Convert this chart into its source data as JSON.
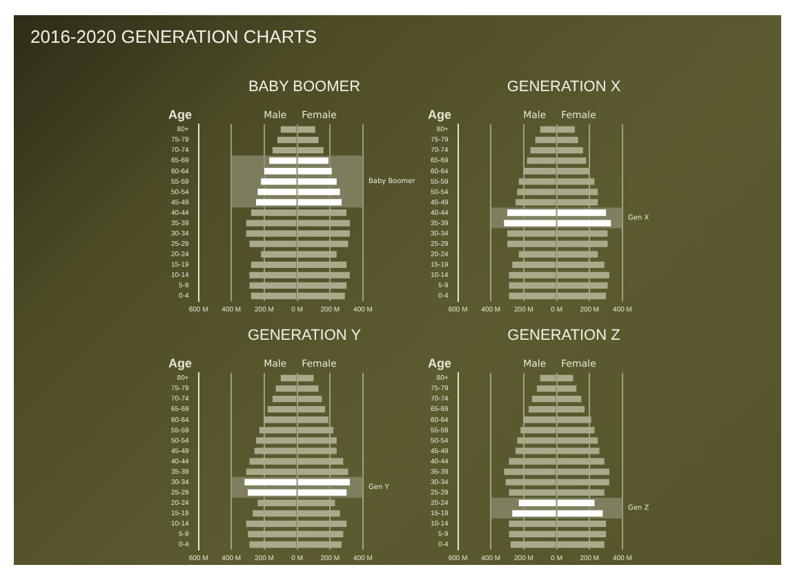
{
  "chart_data": [
    {
      "type": "bar",
      "orientation": "horizontal",
      "stacked": true,
      "grid": "x",
      "title": "BABY BOOMER",
      "ylabel": "Age",
      "annotations": [
        "2016-2020 GENERATION CHARTS"
      ],
      "categories": [
        "80+",
        "75-79",
        "70-74",
        "65-69",
        "60-64",
        "55-59",
        "50-54",
        "45-49",
        "40-44",
        "35-39",
        "30-34",
        "25-29",
        "20-24",
        "15-19",
        "10-14",
        "5-9",
        "0-4"
      ],
      "xlim": [
        -600,
        400
      ],
      "xticks": [
        {
          "value": -600,
          "label": "600 M"
        },
        {
          "value": -400,
          "label": "400 M"
        },
        {
          "value": -200,
          "label": "200 M"
        },
        {
          "value": 0,
          "label": "0 M"
        },
        {
          "value": 200,
          "label": "200 M"
        },
        {
          "value": 400,
          "label": "400 M"
        }
      ],
      "bands": [
        {
          "axis": "y",
          "from": "65-69",
          "to": "45-49",
          "label": "Baby Boomer",
          "color": "#8c8c70"
        }
      ],
      "series": [
        {
          "name": "Male",
          "colors": [
            "#a9a98c",
            "#a9a98c",
            "#a9a98c",
            "#ffffff",
            "#ffffff",
            "#ffffff",
            "#ffffff",
            "#ffffff",
            "#a9a98c",
            "#a9a98c",
            "#a9a98c",
            "#a9a98c",
            "#a9a98c",
            "#a9a98c",
            "#a9a98c",
            "#a9a98c",
            "#a9a98c"
          ],
          "values": [
            -100,
            -120,
            -150,
            -170,
            -200,
            -220,
            -240,
            -250,
            -280,
            -310,
            -310,
            -290,
            -220,
            -280,
            -290,
            -290,
            -280
          ]
        },
        {
          "name": "Female",
          "colors": [
            "#a9a98c",
            "#a9a98c",
            "#a9a98c",
            "#ffffff",
            "#ffffff",
            "#ffffff",
            "#ffffff",
            "#ffffff",
            "#a9a98c",
            "#a9a98c",
            "#a9a98c",
            "#a9a98c",
            "#a9a98c",
            "#a9a98c",
            "#a9a98c",
            "#a9a98c",
            "#a9a98c"
          ],
          "values": [
            110,
            130,
            160,
            190,
            210,
            240,
            260,
            270,
            300,
            320,
            320,
            310,
            240,
            300,
            320,
            300,
            290
          ]
        }
      ]
    },
    {
      "type": "bar",
      "orientation": "horizontal",
      "stacked": true,
      "grid": "x",
      "title": "GENERATION  X",
      "ylabel": "Age",
      "categories": [
        "80+",
        "75-79",
        "70-74",
        "65-69",
        "60-64",
        "55-59",
        "50-54",
        "45-49",
        "40-44",
        "35-39",
        "30-34",
        "25-29",
        "20-24",
        "15-19",
        "10-14",
        "5-9",
        "0-4"
      ],
      "xlim": [
        -600,
        400
      ],
      "xticks": [
        {
          "value": -600,
          "label": "600 M"
        },
        {
          "value": -400,
          "label": "400 M"
        },
        {
          "value": -200,
          "label": "200 M"
        },
        {
          "value": 0,
          "label": "0 M"
        },
        {
          "value": 200,
          "label": "200 M"
        },
        {
          "value": 400,
          "label": "400 M"
        }
      ],
      "bands": [
        {
          "axis": "y",
          "from": "40-44",
          "to": "35-39",
          "label": "Gen X",
          "color": "#8c8c70"
        }
      ],
      "series": [
        {
          "name": "Male",
          "colors": [
            "#a9a98c",
            "#a9a98c",
            "#a9a98c",
            "#a9a98c",
            "#a9a98c",
            "#a9a98c",
            "#a9a98c",
            "#a9a98c",
            "#ffffff",
            "#ffffff",
            "#a9a98c",
            "#a9a98c",
            "#a9a98c",
            "#a9a98c",
            "#a9a98c",
            "#a9a98c",
            "#a9a98c"
          ],
          "values": [
            -100,
            -130,
            -160,
            -180,
            -200,
            -230,
            -240,
            -250,
            -300,
            -320,
            -300,
            -300,
            -230,
            -270,
            -290,
            -290,
            -290
          ]
        },
        {
          "name": "Female",
          "colors": [
            "#a9a98c",
            "#a9a98c",
            "#a9a98c",
            "#a9a98c",
            "#a9a98c",
            "#a9a98c",
            "#a9a98c",
            "#a9a98c",
            "#ffffff",
            "#ffffff",
            "#a9a98c",
            "#a9a98c",
            "#a9a98c",
            "#a9a98c",
            "#a9a98c",
            "#a9a98c",
            "#a9a98c"
          ],
          "values": [
            110,
            130,
            160,
            180,
            200,
            230,
            250,
            250,
            300,
            330,
            310,
            310,
            250,
            290,
            320,
            310,
            300
          ]
        }
      ]
    },
    {
      "type": "bar",
      "orientation": "horizontal",
      "stacked": true,
      "grid": "x",
      "title": "GENERATION  Y",
      "ylabel": "Age",
      "categories": [
        "80+",
        "75-79",
        "70-74",
        "65-69",
        "60-64",
        "55-59",
        "50-54",
        "45-49",
        "40-44",
        "35-39",
        "30-34",
        "25-29",
        "20-24",
        "15-19",
        "10-14",
        "5-9",
        "0-4"
      ],
      "xlim": [
        -600,
        400
      ],
      "xticks": [
        {
          "value": -600,
          "label": "600 M"
        },
        {
          "value": -400,
          "label": "400 M"
        },
        {
          "value": -200,
          "label": "200 M"
        },
        {
          "value": 0,
          "label": "0 M"
        },
        {
          "value": 200,
          "label": "200 M"
        },
        {
          "value": 400,
          "label": "400 M"
        }
      ],
      "bands": [
        {
          "axis": "y",
          "from": "30-34",
          "to": "25-29",
          "label": "Gen Y",
          "color": "#8c8c70"
        }
      ],
      "series": [
        {
          "name": "Male",
          "colors": [
            "#a9a98c",
            "#a9a98c",
            "#a9a98c",
            "#a9a98c",
            "#a9a98c",
            "#a9a98c",
            "#a9a98c",
            "#a9a98c",
            "#a9a98c",
            "#a9a98c",
            "#ffffff",
            "#ffffff",
            "#a9a98c",
            "#a9a98c",
            "#a9a98c",
            "#a9a98c",
            "#a9a98c"
          ],
          "values": [
            -100,
            -130,
            -150,
            -180,
            -200,
            -230,
            -250,
            -260,
            -290,
            -310,
            -320,
            -300,
            -240,
            -270,
            -310,
            -300,
            -290
          ]
        },
        {
          "name": "Female",
          "colors": [
            "#a9a98c",
            "#a9a98c",
            "#a9a98c",
            "#a9a98c",
            "#a9a98c",
            "#a9a98c",
            "#a9a98c",
            "#a9a98c",
            "#a9a98c",
            "#a9a98c",
            "#ffffff",
            "#ffffff",
            "#a9a98c",
            "#a9a98c",
            "#a9a98c",
            "#a9a98c",
            "#a9a98c"
          ],
          "values": [
            100,
            130,
            150,
            170,
            190,
            220,
            240,
            240,
            280,
            310,
            320,
            300,
            230,
            260,
            300,
            280,
            270
          ]
        }
      ]
    },
    {
      "type": "bar",
      "orientation": "horizontal",
      "stacked": true,
      "grid": "x",
      "title": "GENERATION  Z",
      "ylabel": "Age",
      "categories": [
        "80+",
        "75-79",
        "70-74",
        "65-69",
        "60-64",
        "55-59",
        "50-54",
        "45-49",
        "40-44",
        "35-39",
        "30-34",
        "25-29",
        "20-24",
        "15-19",
        "10-14",
        "5-9",
        "0-4"
      ],
      "xlim": [
        -600,
        400
      ],
      "xticks": [
        {
          "value": -600,
          "label": "600 M"
        },
        {
          "value": -400,
          "label": "400 M"
        },
        {
          "value": -200,
          "label": "200 M"
        },
        {
          "value": 0,
          "label": "0 M"
        },
        {
          "value": 200,
          "label": "200 M"
        },
        {
          "value": 400,
          "label": "400 M"
        }
      ],
      "bands": [
        {
          "axis": "y",
          "from": "20-24",
          "to": "15-19",
          "label": "Gen Z",
          "color": "#8c8c70"
        }
      ],
      "series": [
        {
          "name": "Male",
          "colors": [
            "#a9a98c",
            "#a9a98c",
            "#a9a98c",
            "#a9a98c",
            "#a9a98c",
            "#a9a98c",
            "#a9a98c",
            "#a9a98c",
            "#a9a98c",
            "#a9a98c",
            "#a9a98c",
            "#a9a98c",
            "#ffffff",
            "#ffffff",
            "#a9a98c",
            "#a9a98c",
            "#a9a98c"
          ],
          "values": [
            -100,
            -120,
            -150,
            -170,
            -200,
            -220,
            -240,
            -250,
            -290,
            -320,
            -310,
            -290,
            -230,
            -270,
            -290,
            -290,
            -280
          ]
        },
        {
          "name": "Female",
          "colors": [
            "#a9a98c",
            "#a9a98c",
            "#a9a98c",
            "#a9a98c",
            "#a9a98c",
            "#a9a98c",
            "#a9a98c",
            "#a9a98c",
            "#a9a98c",
            "#a9a98c",
            "#a9a98c",
            "#a9a98c",
            "#ffffff",
            "#ffffff",
            "#a9a98c",
            "#a9a98c",
            "#a9a98c"
          ],
          "values": [
            100,
            120,
            150,
            170,
            210,
            230,
            250,
            260,
            290,
            320,
            320,
            290,
            230,
            280,
            300,
            300,
            290
          ]
        }
      ]
    }
  ]
}
